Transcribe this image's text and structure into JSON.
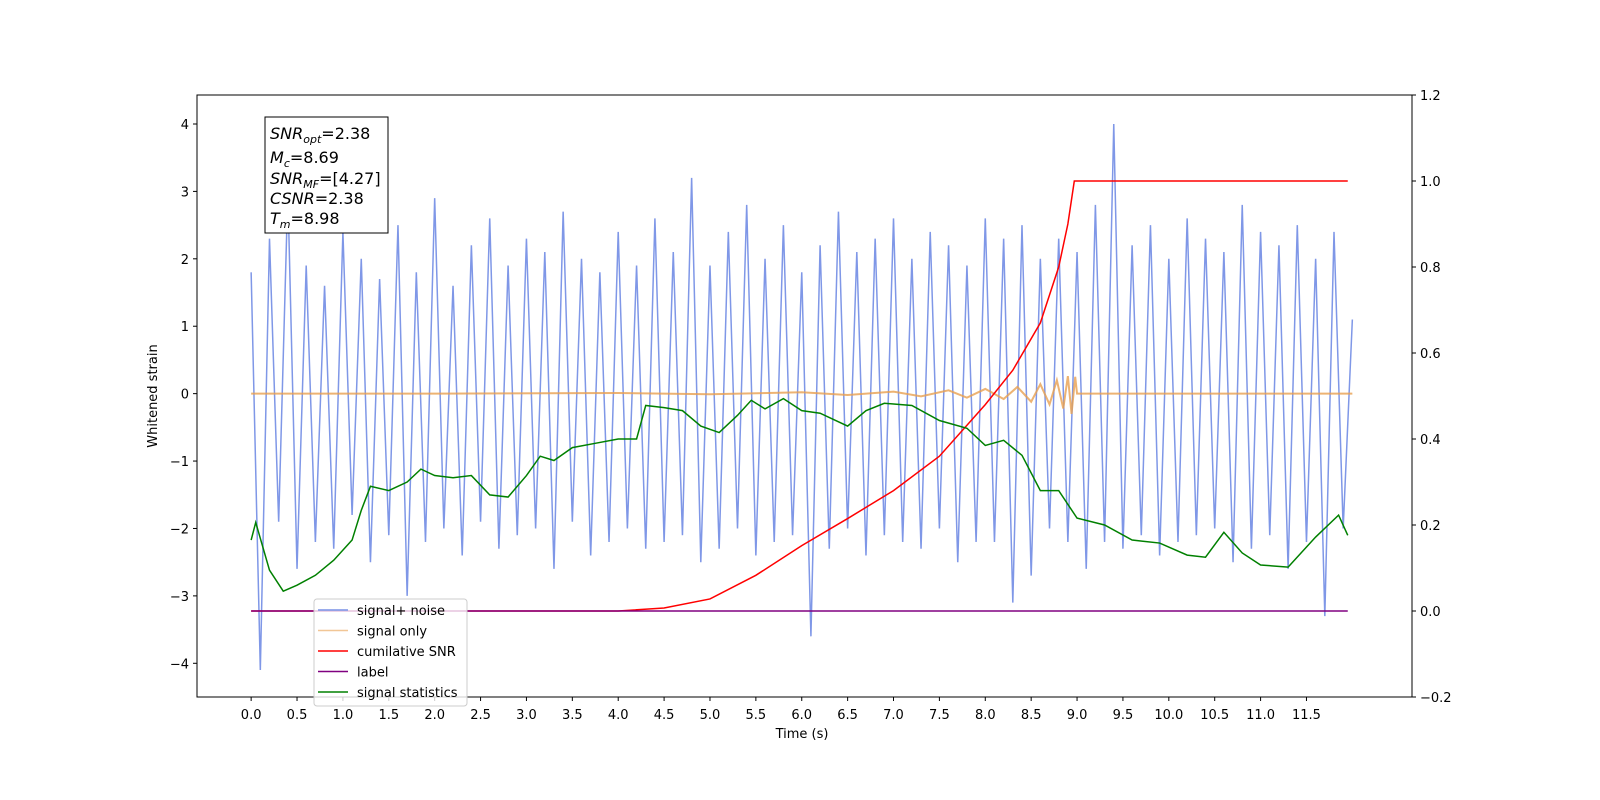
{
  "chart_data": {
    "type": "line",
    "xlabel": "Time (s)",
    "ylabel": "Whitened strain",
    "xlim": [
      -0.59,
      12.65
    ],
    "ylim": [
      -4.5,
      4.43
    ],
    "y2lim": [
      -0.2,
      1.2
    ],
    "xticks": [
      {
        "value": 0,
        "label": "0.0"
      },
      0.5,
      {
        "value": 1,
        "label": "1.0"
      },
      1.5,
      {
        "value": 2,
        "label": "2.0"
      },
      2.5,
      {
        "value": 3,
        "label": "3.0"
      },
      3.5,
      {
        "value": 4,
        "label": "4.0"
      },
      4.5,
      {
        "value": 5,
        "label": "5.0"
      },
      5.5,
      {
        "value": 6,
        "label": "6.0"
      },
      6.5,
      {
        "value": 7,
        "label": "7.0"
      },
      7.5,
      {
        "value": 8,
        "label": "8.0"
      },
      8.5,
      {
        "value": 9,
        "label": "9.0"
      },
      9.5,
      {
        "value": 10,
        "label": "10.0"
      },
      10.5,
      {
        "value": 11,
        "label": "11.0"
      },
      11.5
    ],
    "yticks": [
      {
        "value": -4,
        "label": "−4"
      },
      {
        "value": -3,
        "label": "−3"
      },
      {
        "value": -2,
        "label": "−2"
      },
      {
        "value": -1,
        "label": "−1"
      },
      0,
      1,
      2,
      3,
      4
    ],
    "y2ticks": [
      {
        "value": -0.2,
        "label": "−0.2"
      },
      {
        "value": 0,
        "label": "0.0"
      },
      0.2,
      0.4,
      0.6,
      0.8,
      {
        "value": 1,
        "label": "1.0"
      },
      1.2
    ],
    "annotation_lines": [
      {
        "symbol": "SNR",
        "sub": "opt",
        "text": "=2.38"
      },
      {
        "symbol": "M",
        "sub": "c",
        "text": "=8.69"
      },
      {
        "symbol": "SNR",
        "sub": "MF",
        "text": "=[4.27]"
      },
      {
        "symbol": "CSNR",
        "text": "=2.38"
      },
      {
        "symbol": "T",
        "sub": "m",
        "text": "=8.98"
      }
    ],
    "legend": "lower left",
    "series": [
      {
        "name": "signal+ noise",
        "color": "#7891e6",
        "x": [
          0,
          0.1,
          0.2,
          0.3,
          0.4,
          0.5,
          0.6,
          0.7,
          0.8,
          0.9,
          1,
          1.1,
          1.2,
          1.3,
          1.4,
          1.5,
          1.6,
          1.7,
          1.8,
          1.9,
          2,
          2.1,
          2.2,
          2.3,
          2.4,
          2.5,
          2.6,
          2.7,
          2.8,
          2.9,
          3,
          3.1,
          3.2,
          3.3,
          3.4,
          3.5,
          3.6,
          3.7,
          3.8,
          3.9,
          4,
          4.1,
          4.2,
          4.3,
          4.4,
          4.5,
          4.6,
          4.7,
          4.8,
          4.9,
          5,
          5.1,
          5.2,
          5.3,
          5.4,
          5.5,
          5.6,
          5.7,
          5.8,
          5.9,
          6,
          6.1,
          6.2,
          6.3,
          6.4,
          6.5,
          6.6,
          6.7,
          6.8,
          6.9,
          7,
          7.1,
          7.2,
          7.3,
          7.4,
          7.5,
          7.6,
          7.7,
          7.8,
          7.9,
          8,
          8.1,
          8.2,
          8.3,
          8.4,
          8.5,
          8.6,
          8.7,
          8.8,
          8.9,
          9,
          9.1,
          9.2,
          9.3,
          9.4,
          9.5,
          9.6,
          9.7,
          9.8,
          9.9,
          10,
          10.1,
          10.2,
          10.3,
          10.4,
          10.5,
          10.6,
          10.7,
          10.8,
          10.9,
          11,
          11.1,
          11.2,
          11.3,
          11.4,
          11.5,
          11.6,
          11.7,
          11.8,
          11.9,
          12
        ],
        "values": [
          1.8,
          -4.1,
          2.3,
          -1.9,
          3.0,
          -2.6,
          1.9,
          -2.2,
          1.6,
          -2.3,
          2.4,
          -1.8,
          2.0,
          -2.5,
          1.7,
          -2.1,
          2.5,
          -3.0,
          1.8,
          -2.2,
          2.9,
          -2.0,
          1.6,
          -2.4,
          2.2,
          -1.9,
          2.6,
          -2.3,
          1.9,
          -2.1,
          2.3,
          -2.0,
          2.1,
          -2.6,
          2.7,
          -1.9,
          2.0,
          -2.4,
          1.8,
          -2.2,
          2.4,
          -2.0,
          1.9,
          -2.3,
          2.6,
          -2.2,
          2.1,
          -2.1,
          3.2,
          -2.5,
          1.9,
          -2.3,
          2.4,
          -2.0,
          2.8,
          -2.4,
          2.0,
          -2.2,
          2.5,
          -2.1,
          1.8,
          -3.6,
          2.2,
          -2.3,
          2.7,
          -2.0,
          2.1,
          -2.4,
          2.3,
          -2.1,
          2.6,
          -2.2,
          2.0,
          -2.3,
          2.4,
          -2.0,
          2.2,
          -2.5,
          1.9,
          -2.2,
          2.6,
          -2.2,
          2.3,
          -3.1,
          2.5,
          -2.7,
          2.0,
          -2.0,
          2.3,
          -2.2,
          2.1,
          -2.6,
          2.8,
          -2.2,
          4.0,
          -2.3,
          2.2,
          -2.1,
          2.5,
          -2.4,
          2.0,
          -2.2,
          2.6,
          -2.1,
          2.3,
          -2.0,
          2.1,
          -2.5,
          2.8,
          -2.3,
          2.4,
          -2.1,
          2.2,
          -2.6,
          2.5,
          -2.2,
          2.0,
          -3.3,
          2.4,
          -2.0,
          1.1
        ]
      },
      {
        "name": "signal only",
        "color": "#e8a050",
        "x": [
          0,
          2,
          4,
          5,
          6,
          6.5,
          7,
          7.3,
          7.6,
          7.8,
          8.0,
          8.2,
          8.35,
          8.5,
          8.6,
          8.7,
          8.78,
          8.85,
          8.9,
          8.94,
          8.98,
          9.0,
          12.0
        ],
        "values": [
          0,
          0,
          0.01,
          -0.01,
          0.02,
          -0.02,
          0.03,
          -0.04,
          0.05,
          -0.06,
          0.07,
          -0.08,
          0.1,
          -0.12,
          0.14,
          -0.16,
          0.2,
          -0.22,
          0.26,
          -0.3,
          0.25,
          0,
          0
        ]
      },
      {
        "name": "cumilative SNR",
        "color": "#ff0000",
        "axis": "y2",
        "x": [
          0,
          4,
          4.5,
          5,
          5.5,
          6,
          6.5,
          7,
          7.5,
          8,
          8.3,
          8.6,
          8.8,
          8.9,
          8.97,
          11.95
        ],
        "values": [
          0,
          0,
          0.007,
          0.028,
          0.083,
          0.152,
          0.215,
          0.28,
          0.36,
          0.48,
          0.56,
          0.67,
          0.8,
          0.9,
          1.0,
          1.0
        ]
      },
      {
        "name": "label",
        "color": "#800080",
        "axis": "y2",
        "x": [
          0,
          11.95
        ],
        "values": [
          0,
          0
        ]
      },
      {
        "name": "signal statistics",
        "color": "#008000",
        "axis": "y2",
        "x": [
          0,
          0.05,
          0.2,
          0.35,
          0.5,
          0.7,
          0.9,
          1.1,
          1.2,
          1.3,
          1.5,
          1.7,
          1.85,
          2.0,
          2.2,
          2.4,
          2.6,
          2.8,
          3.0,
          3.15,
          3.3,
          3.5,
          3.75,
          4.0,
          4.2,
          4.3,
          4.5,
          4.7,
          4.9,
          5.1,
          5.3,
          5.45,
          5.6,
          5.8,
          6.0,
          6.2,
          6.5,
          6.7,
          6.9,
          7.2,
          7.5,
          7.8,
          8.0,
          8.2,
          8.4,
          8.6,
          8.8,
          9.0,
          9.3,
          9.6,
          9.9,
          10.2,
          10.4,
          10.6,
          10.8,
          11.0,
          11.3,
          11.6,
          11.85,
          11.95
        ],
        "values": [
          0.165,
          0.206,
          0.095,
          0.046,
          0.06,
          0.083,
          0.118,
          0.165,
          0.234,
          0.29,
          0.28,
          0.3,
          0.33,
          0.315,
          0.31,
          0.315,
          0.27,
          0.265,
          0.315,
          0.36,
          0.35,
          0.38,
          0.39,
          0.4,
          0.4,
          0.478,
          0.473,
          0.466,
          0.43,
          0.415,
          0.455,
          0.49,
          0.47,
          0.494,
          0.466,
          0.46,
          0.43,
          0.466,
          0.483,
          0.478,
          0.443,
          0.425,
          0.385,
          0.397,
          0.362,
          0.28,
          0.28,
          0.216,
          0.2,
          0.165,
          0.158,
          0.13,
          0.125,
          0.183,
          0.135,
          0.107,
          0.102,
          0.172,
          0.223,
          0.176
        ]
      }
    ]
  }
}
